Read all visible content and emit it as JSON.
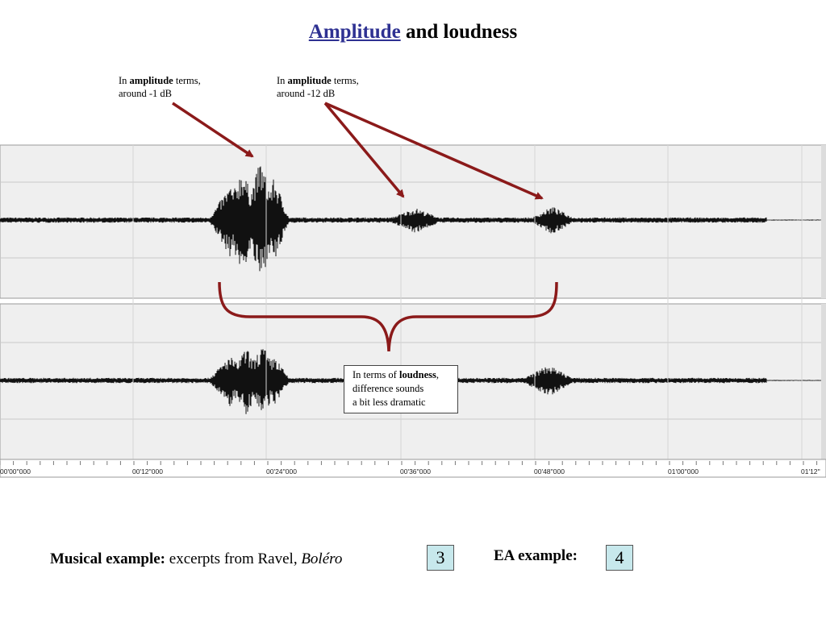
{
  "title": {
    "link": "Amplitude",
    "rest": " and loudness"
  },
  "annotations": {
    "left": {
      "prefix": "In ",
      "bold": "amplitude",
      "suffix": " terms,",
      "line2": "around  -1 dB"
    },
    "right": {
      "prefix": "In ",
      "bold": "amplitude",
      "suffix": " terms,",
      "line2": "around -12 dB"
    }
  },
  "loudness_box": {
    "prefix": "In terms of ",
    "bold": "loudness",
    "suffix": ",",
    "line2": "difference sounds",
    "line3": "a bit less dramatic"
  },
  "timeline": [
    "00'00''000",
    "00'12''000",
    "00'24''000",
    "00'36''000",
    "00'48''000",
    "01'00''000",
    "01'12''"
  ],
  "footer": {
    "musical_label": "Musical example:",
    "musical_text": " excerpts from Ravel, ",
    "musical_title": "Boléro",
    "ea_label": "EA example:",
    "btn3": "3",
    "btn4": "4"
  },
  "colors": {
    "arrow": "#8b1a1a",
    "link": "#2e3192",
    "button": "#c7e8ec"
  }
}
